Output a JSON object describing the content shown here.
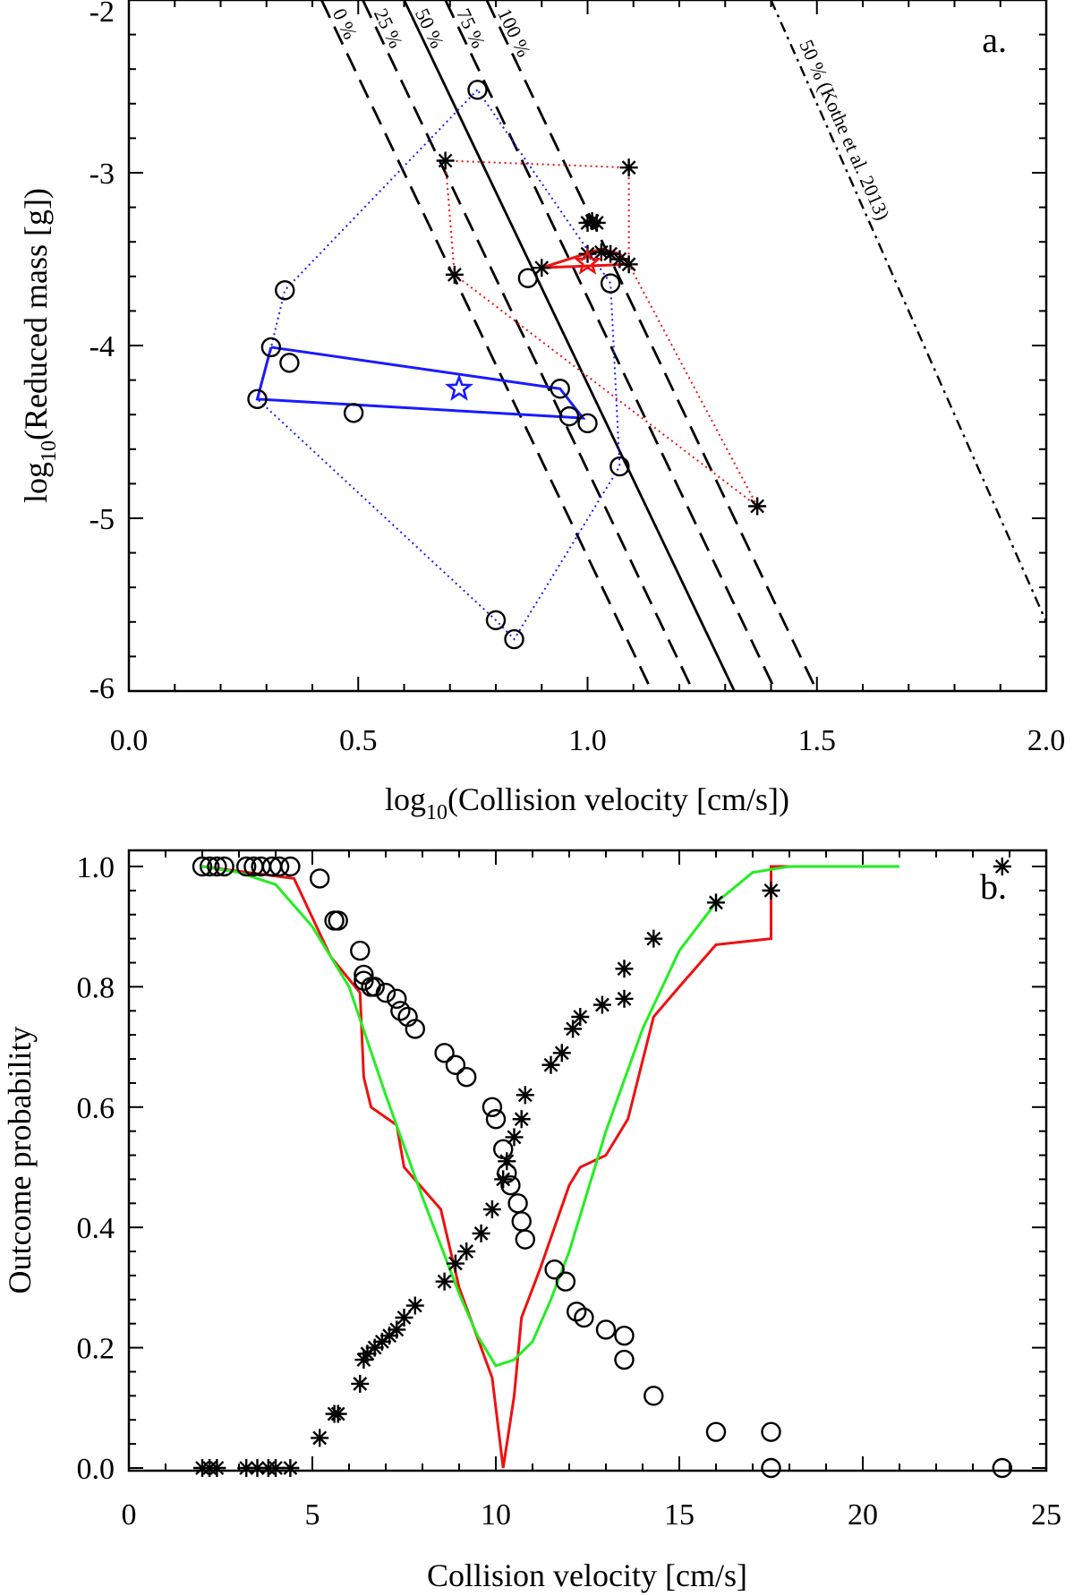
{
  "chart_data": [
    {
      "panel_label": "a.",
      "type": "scatter",
      "xlabel": "log10(Collision velocity [cm/s])",
      "xlabel_parts": {
        "prefix": "log",
        "sub": "10",
        "rest": "(Collision velocity [cm/s])"
      },
      "ylabel": "log10(Reduced mass [g])",
      "ylabel_parts": {
        "prefix": "log",
        "sub": "10",
        "rest": "(Reduced mass [g])"
      },
      "xlim": [
        0.0,
        2.0
      ],
      "ylim": [
        -6.0,
        -2.0
      ],
      "xticks": [
        0.0,
        0.5,
        1.0,
        1.5,
        2.0
      ],
      "xtick_labels": [
        "0.0",
        "0.5",
        "1.0",
        "1.5",
        "2.0"
      ],
      "yticks": [
        -6,
        -5,
        -4,
        -3,
        -2
      ],
      "ytick_labels": [
        "-6",
        "-5",
        "-4",
        "-3",
        "-2"
      ],
      "boundary_lines": [
        {
          "label": "0 %",
          "style": "dashed",
          "points": [
            [
              0.42,
              -2.0
            ],
            [
              1.14,
              -6.0
            ]
          ]
        },
        {
          "label": "25 %",
          "style": "dashed",
          "points": [
            [
              0.51,
              -2.0
            ],
            [
              1.23,
              -6.0
            ]
          ]
        },
        {
          "label": "50 %",
          "style": "solid",
          "points": [
            [
              0.6,
              -2.0
            ],
            [
              1.32,
              -6.0
            ]
          ]
        },
        {
          "label": "75 %",
          "style": "dashed",
          "points": [
            [
              0.69,
              -2.0
            ],
            [
              1.41,
              -6.0
            ]
          ]
        },
        {
          "label": "100 %",
          "style": "dashed",
          "points": [
            [
              0.78,
              -2.0
            ],
            [
              1.5,
              -6.0
            ]
          ]
        },
        {
          "label": "50 % (Kothe et al. 2013)",
          "style": "dashdot",
          "points": [
            [
              1.4,
              -2.0
            ],
            [
              2.0,
              -5.6
            ]
          ]
        }
      ],
      "series": [
        {
          "marker": "circle",
          "points": [
            [
              0.76,
              -2.52
            ],
            [
              0.34,
              -3.68
            ],
            [
              0.31,
              -4.01
            ],
            [
              0.35,
              -4.1
            ],
            [
              0.28,
              -4.31
            ],
            [
              0.49,
              -4.39
            ],
            [
              0.94,
              -4.25
            ],
            [
              0.96,
              -4.41
            ],
            [
              1.0,
              -4.45
            ],
            [
              1.07,
              -4.7
            ],
            [
              0.87,
              -3.61
            ],
            [
              1.05,
              -3.64
            ],
            [
              0.8,
              -5.59
            ],
            [
              0.84,
              -5.7
            ]
          ],
          "outline_dotted": [
            [
              0.76,
              -2.52
            ],
            [
              0.34,
              -3.68
            ],
            [
              0.31,
              -4.01
            ],
            [
              0.28,
              -4.31
            ],
            [
              0.8,
              -5.59
            ],
            [
              0.84,
              -5.7
            ],
            [
              1.07,
              -4.7
            ],
            [
              1.05,
              -3.64
            ],
            [
              0.76,
              -2.52
            ]
          ],
          "outline_solid": [
            [
              0.31,
              -4.01
            ],
            [
              0.94,
              -4.25
            ],
            [
              0.99,
              -4.42
            ],
            [
              0.28,
              -4.31
            ],
            [
              0.31,
              -4.01
            ]
          ],
          "centroid": [
            0.72,
            -4.25
          ],
          "outline_color": "#1a1aff"
        },
        {
          "marker": "asterisk",
          "points": [
            [
              0.69,
              -2.93
            ],
            [
              1.09,
              -2.97
            ],
            [
              1.0,
              -3.29
            ],
            [
              1.01,
              -3.28
            ],
            [
              1.02,
              -3.29
            ],
            [
              0.9,
              -3.55
            ],
            [
              1.0,
              -3.47
            ],
            [
              1.03,
              -3.46
            ],
            [
              1.05,
              -3.47
            ],
            [
              1.07,
              -3.5
            ],
            [
              1.09,
              -3.53
            ],
            [
              0.71,
              -3.59
            ],
            [
              1.37,
              -4.93
            ]
          ],
          "outline_dotted": [
            [
              0.69,
              -2.93
            ],
            [
              1.09,
              -2.97
            ],
            [
              1.09,
              -3.53
            ],
            [
              1.37,
              -4.93
            ],
            [
              0.71,
              -3.59
            ],
            [
              0.69,
              -2.93
            ]
          ],
          "outline_solid": [
            [
              0.9,
              -3.55
            ],
            [
              1.03,
              -3.44
            ],
            [
              1.07,
              -3.47
            ],
            [
              1.09,
              -3.53
            ],
            [
              0.9,
              -3.55
            ]
          ],
          "centroid": [
            1.0,
            -3.52
          ],
          "outline_color": "#ee1111"
        }
      ]
    },
    {
      "panel_label": "b.",
      "type": "scatter",
      "xlabel": "Collision velocity [cm/s]",
      "ylabel": "Outcome probability",
      "xlim": [
        0,
        25
      ],
      "ylim": [
        0.0,
        1.0
      ],
      "xticks": [
        0,
        5,
        10,
        15,
        20,
        25
      ],
      "xtick_labels": [
        "0",
        "5",
        "10",
        "15",
        "20",
        "25"
      ],
      "yticks": [
        0.0,
        0.2,
        0.4,
        0.6,
        0.8,
        1.0
      ],
      "ytick_labels": [
        "0.0",
        "0.2",
        "0.4",
        "0.6",
        "0.8",
        "1.0"
      ],
      "series": [
        {
          "marker": "circle",
          "x": [
            2.0,
            2.2,
            2.4,
            2.6,
            3.2,
            3.4,
            3.6,
            3.9,
            4.1,
            4.4,
            5.2,
            5.6,
            5.7,
            6.3,
            6.4,
            6.4,
            6.6,
            6.7,
            7.0,
            7.3,
            7.4,
            7.6,
            7.8,
            8.6,
            8.9,
            9.2,
            9.9,
            10.0,
            10.2,
            10.3,
            10.4,
            10.6,
            10.7,
            10.8,
            11.6,
            11.9,
            12.2,
            12.4,
            13.0,
            13.5,
            13.5,
            14.3,
            16.0,
            17.5,
            17.5,
            23.8
          ],
          "y": [
            1.0,
            1.0,
            1.0,
            1.0,
            1.0,
            1.0,
            1.0,
            1.0,
            1.0,
            1.0,
            0.98,
            0.91,
            0.91,
            0.86,
            0.82,
            0.81,
            0.8,
            0.8,
            0.79,
            0.78,
            0.76,
            0.75,
            0.73,
            0.69,
            0.67,
            0.65,
            0.6,
            0.58,
            0.53,
            0.49,
            0.47,
            0.44,
            0.41,
            0.38,
            0.33,
            0.31,
            0.26,
            0.25,
            0.23,
            0.22,
            0.18,
            0.12,
            0.06,
            0.06,
            0.0,
            0.0
          ]
        },
        {
          "marker": "asterisk",
          "x": [
            2.0,
            2.2,
            2.4,
            3.2,
            3.5,
            3.8,
            4.0,
            4.4,
            5.2,
            5.6,
            5.7,
            6.3,
            6.4,
            6.5,
            6.7,
            6.9,
            7.1,
            7.3,
            7.5,
            7.8,
            8.6,
            8.9,
            9.2,
            9.6,
            9.9,
            10.2,
            10.3,
            10.5,
            10.7,
            10.8,
            11.5,
            11.8,
            12.1,
            12.3,
            12.9,
            13.5,
            13.5,
            14.3,
            16.0,
            17.5,
            23.8
          ],
          "y": [
            0.0,
            0.0,
            0.0,
            0.0,
            0.0,
            0.0,
            0.0,
            0.0,
            0.05,
            0.09,
            0.09,
            0.14,
            0.18,
            0.19,
            0.2,
            0.21,
            0.22,
            0.23,
            0.25,
            0.27,
            0.31,
            0.34,
            0.36,
            0.39,
            0.43,
            0.48,
            0.51,
            0.55,
            0.58,
            0.62,
            0.67,
            0.69,
            0.73,
            0.75,
            0.77,
            0.78,
            0.83,
            0.88,
            0.94,
            0.96,
            1.0
          ]
        },
        {
          "marker": "line",
          "color": "#ee1111",
          "x": [
            2.0,
            4.5,
            5.5,
            6.3,
            6.4,
            6.6,
            7.3,
            7.5,
            8.5,
            9.0,
            9.9,
            10.2,
            10.5,
            10.7,
            11.2,
            12.0,
            12.3,
            13.0,
            13.3,
            13.6,
            14.3,
            15.0,
            16.0,
            17.5,
            17.5,
            18.0,
            20.0,
            21.0
          ],
          "y": [
            1.0,
            0.98,
            0.85,
            0.79,
            0.65,
            0.6,
            0.57,
            0.5,
            0.43,
            0.3,
            0.15,
            0.0,
            0.12,
            0.25,
            0.33,
            0.47,
            0.5,
            0.52,
            0.55,
            0.58,
            0.75,
            0.8,
            0.87,
            0.88,
            1.0,
            1.0,
            1.0,
            1.0
          ]
        },
        {
          "marker": "line",
          "color": "#22ee22",
          "x": [
            2.0,
            3.0,
            4.0,
            5.0,
            6.0,
            7.0,
            8.0,
            9.0,
            9.5,
            10.0,
            10.5,
            11.0,
            11.5,
            12.0,
            13.0,
            14.0,
            15.0,
            16.0,
            17.0,
            18.0,
            19.0,
            21.0
          ],
          "y": [
            1.0,
            0.99,
            0.97,
            0.9,
            0.8,
            0.62,
            0.45,
            0.29,
            0.22,
            0.17,
            0.18,
            0.21,
            0.28,
            0.36,
            0.56,
            0.73,
            0.86,
            0.94,
            0.99,
            1.0,
            1.0,
            1.0
          ]
        }
      ]
    }
  ]
}
